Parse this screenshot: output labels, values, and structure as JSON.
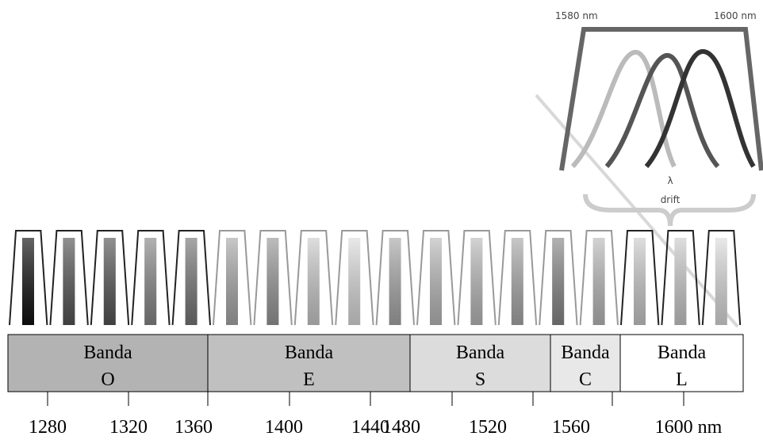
{
  "inset": {
    "left_label": "1580 nm",
    "right_label": "1600 nm",
    "symbol": "λ",
    "caption": "drift"
  },
  "bands": [
    {
      "line1": "Banda",
      "line2": "O"
    },
    {
      "line1": "Banda",
      "line2": "E"
    },
    {
      "line1": "Banda",
      "line2": "S"
    },
    {
      "line1": "Banda",
      "line2": "C"
    },
    {
      "line1": "Banda",
      "line2": "L"
    }
  ],
  "axis": {
    "ticks": [
      "1280",
      "1320",
      "1360",
      "1400",
      "1440",
      "1480",
      "1520",
      "1560",
      "1600 nm"
    ]
  }
}
